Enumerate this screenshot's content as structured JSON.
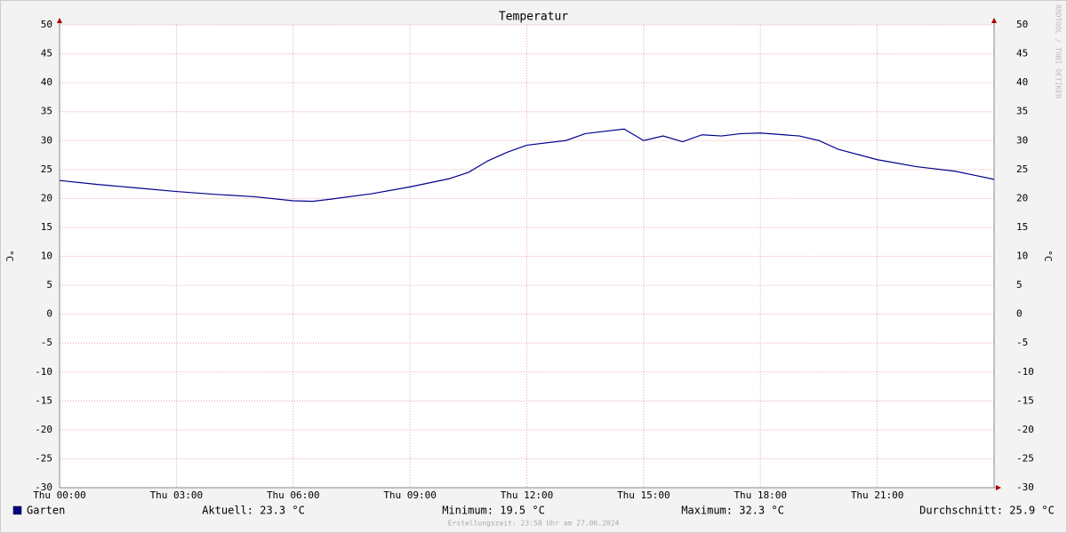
{
  "chart_data": {
    "type": "line",
    "title": "Temperatur",
    "y_label": "°C",
    "y2_label": "°C",
    "watermark": "RRDTOOL / TOBI OETIKER",
    "x": [
      0,
      1,
      2,
      3,
      4,
      5,
      6,
      6.5,
      7,
      8,
      9,
      10,
      10.5,
      11,
      11.5,
      12,
      13,
      13.5,
      14,
      14.5,
      15,
      15.5,
      16,
      16.5,
      17,
      17.5,
      18,
      19,
      19.5,
      20,
      21,
      22,
      23,
      23.5,
      24
    ],
    "series": [
      {
        "name": "Garten",
        "color": "#00008b",
        "values": [
          23.1,
          22.4,
          21.8,
          21.2,
          20.7,
          20.3,
          19.6,
          19.5,
          19.9,
          20.8,
          22.0,
          23.4,
          24.5,
          26.5,
          28.0,
          29.2,
          30.0,
          31.2,
          31.6,
          32.0,
          30.0,
          30.8,
          29.8,
          31.0,
          30.8,
          31.2,
          31.3,
          30.8,
          30.0,
          28.5,
          26.7,
          25.5,
          24.7,
          24.0,
          23.3
        ]
      }
    ],
    "xlim": [
      0,
      24
    ],
    "xticks": [
      {
        "value": 0,
        "label": "Thu 00:00"
      },
      {
        "value": 3,
        "label": "Thu 03:00"
      },
      {
        "value": 6,
        "label": "Thu 06:00"
      },
      {
        "value": 9,
        "label": "Thu 09:00"
      },
      {
        "value": 12,
        "label": "Thu 12:00"
      },
      {
        "value": 15,
        "label": "Thu 15:00"
      },
      {
        "value": 18,
        "label": "Thu 18:00"
      },
      {
        "value": 21,
        "label": "Thu 21:00"
      }
    ],
    "ylim": [
      -30,
      50
    ],
    "yticks": [
      -30,
      -25,
      -20,
      -15,
      -10,
      -5,
      0,
      5,
      10,
      15,
      20,
      25,
      30,
      35,
      40,
      45,
      50
    ],
    "grid": true,
    "stats": [
      "Aktuell: 23.3 °C",
      "Minimum: 19.5 °C",
      "Maximum: 32.3 °C",
      "Durchschnitt: 25.9 °C"
    ],
    "footer": "Erstellungszeit: 23:58 Uhr am 27.06.2024"
  }
}
